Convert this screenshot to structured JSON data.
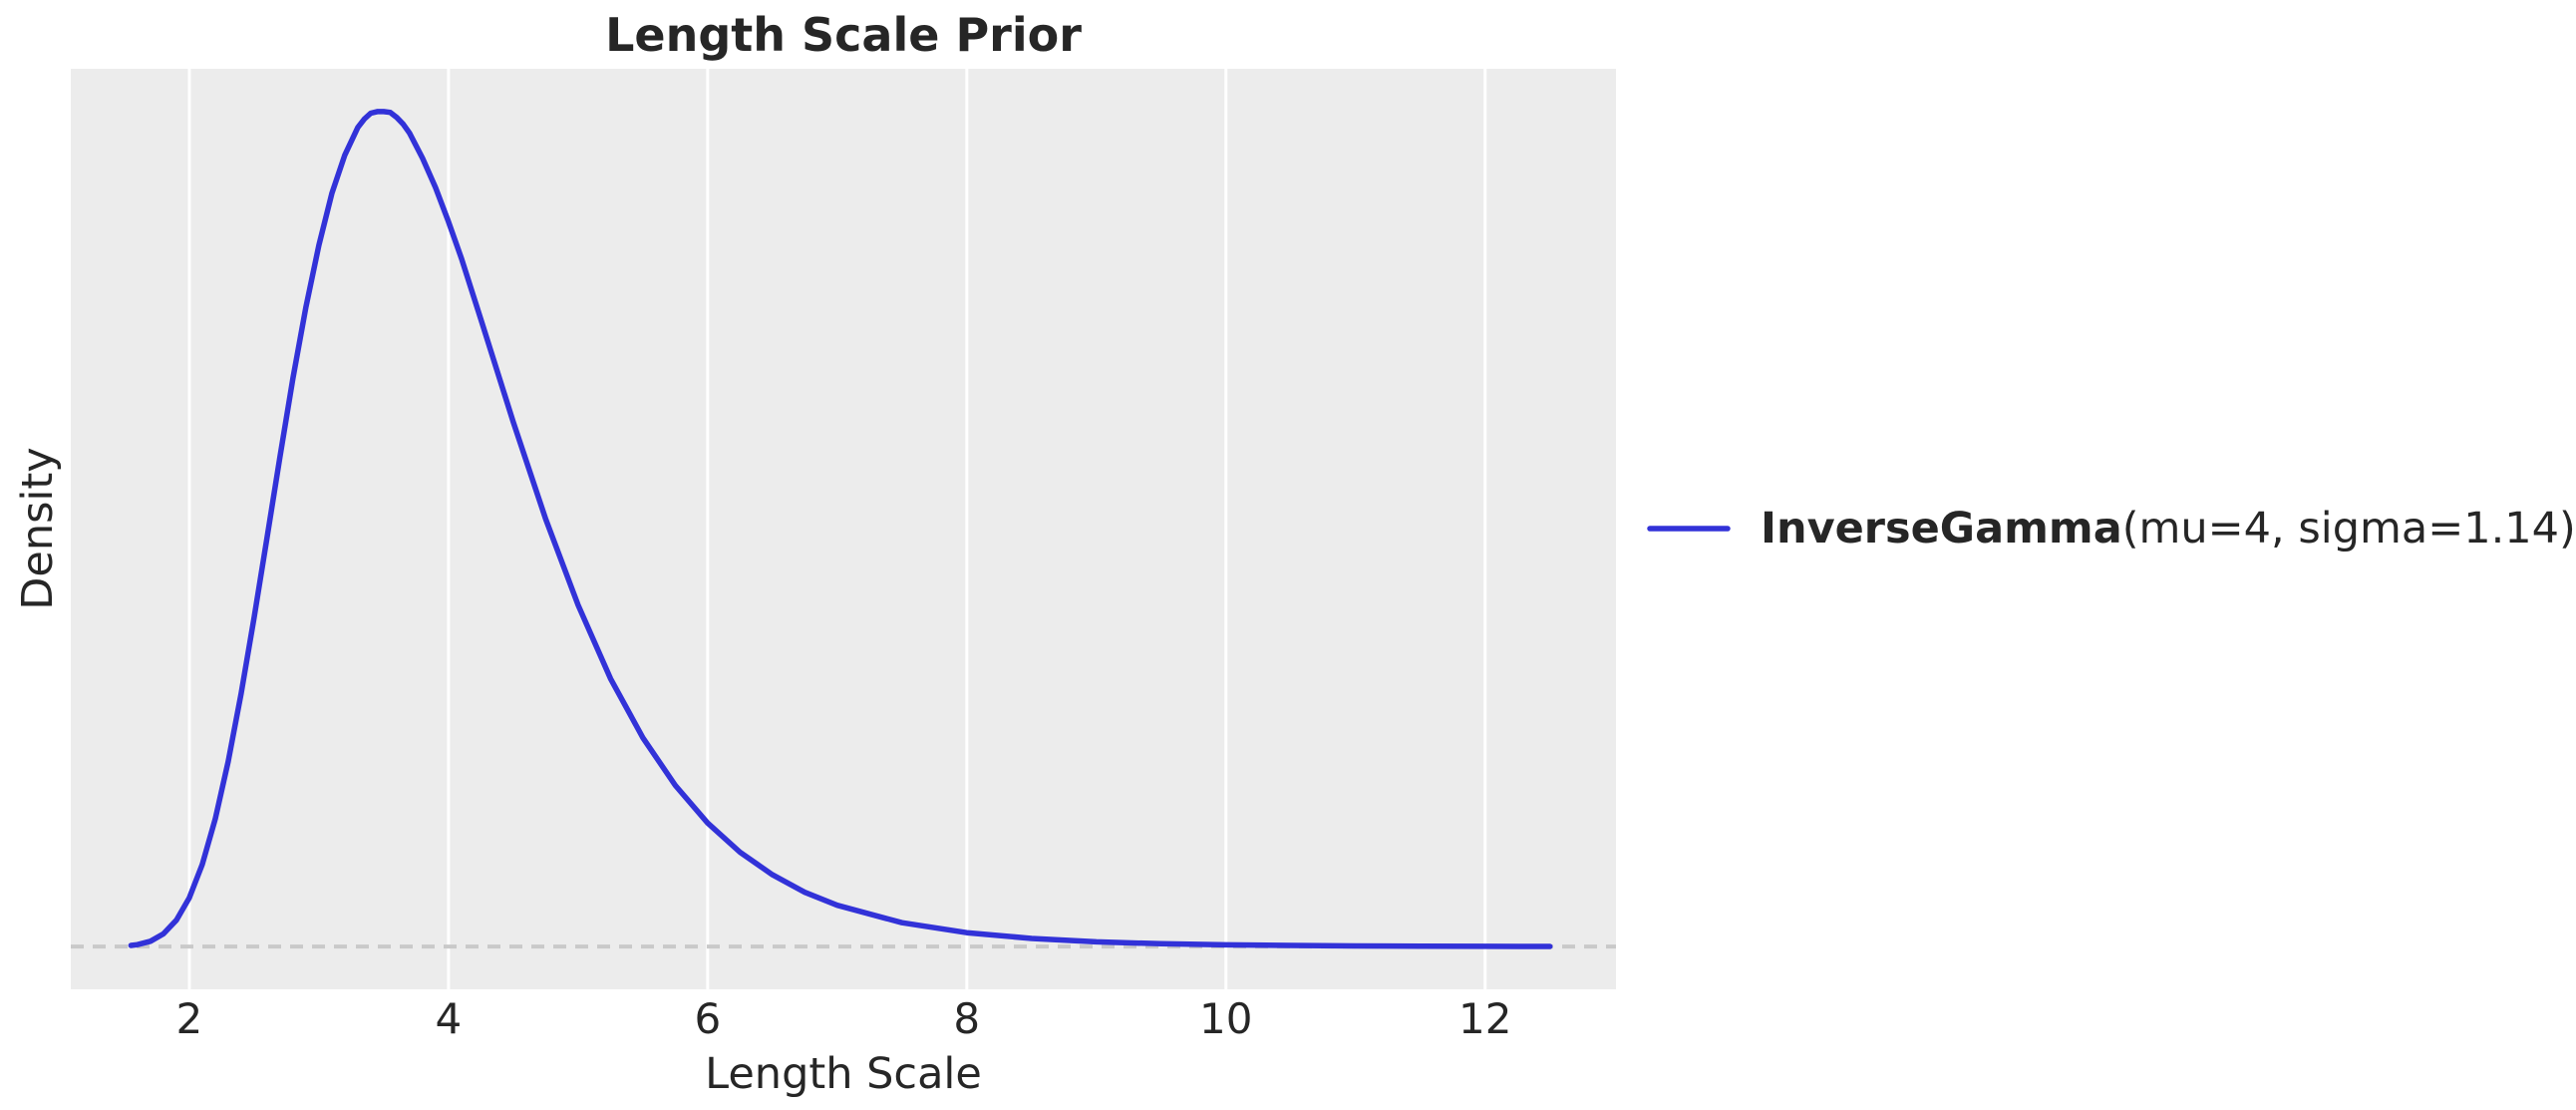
{
  "figure": {
    "background_color": "#ffffff",
    "plot_background_color": "#ececec",
    "grid_color": "#ffffff",
    "text_color": "#262626"
  },
  "chart_data": {
    "type": "line",
    "title": "Length Scale Prior",
    "xlabel": "Length Scale",
    "ylabel": "Density",
    "xlim": [
      1.085,
      13.01
    ],
    "ylim": [
      -0.0512,
      1.0512
    ],
    "x_ticks": [
      2,
      4,
      6,
      8,
      10,
      12
    ],
    "y_ticks": [],
    "y_units": "density normalized to peak = 1 (no y tick labels shown)",
    "grid": "vertical gridlines only, white on gray panel",
    "legend": {
      "position": "outside-right, vertically centered",
      "name": "InverseGamma",
      "params": "(mu=4, sigma=1.14)",
      "line_color": "#3232d8"
    },
    "zero_line": {
      "y": 0,
      "style": "dashed",
      "color": "#c9c9c9",
      "dash": [
        13,
        9
      ],
      "width": 4
    },
    "series": [
      {
        "name": "InverseGamma(mu=4, sigma=1.14)",
        "color": "#3232d8",
        "stroke_width": 5.5,
        "peak_x": 3.48,
        "points": [
          [
            1.55,
            0.0013
          ],
          [
            1.6,
            0.0023
          ],
          [
            1.7,
            0.0064
          ],
          [
            1.8,
            0.0152
          ],
          [
            1.9,
            0.0316
          ],
          [
            2.0,
            0.0585
          ],
          [
            2.1,
            0.0984
          ],
          [
            2.2,
            0.1527
          ],
          [
            2.3,
            0.2216
          ],
          [
            2.4,
            0.303
          ],
          [
            2.5,
            0.394
          ],
          [
            2.6,
            0.49
          ],
          [
            2.7,
            0.587
          ],
          [
            2.8,
            0.681
          ],
          [
            2.9,
            0.766
          ],
          [
            3.0,
            0.84
          ],
          [
            3.1,
            0.902
          ],
          [
            3.2,
            0.948
          ],
          [
            3.3,
            0.981
          ],
          [
            3.35,
            0.991
          ],
          [
            3.4,
            0.998
          ],
          [
            3.45,
            1.0
          ],
          [
            3.5,
            1.0
          ],
          [
            3.55,
            0.999
          ],
          [
            3.6,
            0.993
          ],
          [
            3.65,
            0.985
          ],
          [
            3.7,
            0.974
          ],
          [
            3.8,
            0.944
          ],
          [
            3.9,
            0.909
          ],
          [
            4.0,
            0.868
          ],
          [
            4.1,
            0.824
          ],
          [
            4.25,
            0.751
          ],
          [
            4.5,
            0.628
          ],
          [
            4.75,
            0.512
          ],
          [
            5.0,
            0.409
          ],
          [
            5.25,
            0.321
          ],
          [
            5.5,
            0.25
          ],
          [
            5.75,
            0.193
          ],
          [
            6.0,
            0.148
          ],
          [
            6.25,
            0.113
          ],
          [
            6.5,
            0.086
          ],
          [
            6.75,
            0.065
          ],
          [
            7.0,
            0.0495
          ],
          [
            7.5,
            0.0286
          ],
          [
            8.0,
            0.0166
          ],
          [
            8.5,
            0.0097
          ],
          [
            9.0,
            0.0057
          ],
          [
            9.5,
            0.0034
          ],
          [
            10.0,
            0.0021
          ],
          [
            10.5,
            0.0013
          ],
          [
            11.0,
            0.0008
          ],
          [
            11.5,
            0.0005
          ],
          [
            12.0,
            0.0003
          ],
          [
            12.5,
            0.0002
          ]
        ]
      }
    ]
  }
}
